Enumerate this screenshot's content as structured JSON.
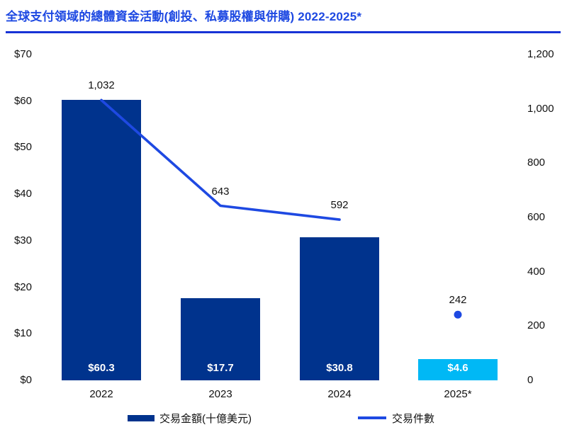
{
  "title": "全球支付領域的總體資金活動(創投、私募股權與併購) 2022-2025*",
  "colors": {
    "title": "#1E49E2",
    "divider": "#1733D6",
    "bar": "#00338D",
    "bar_highlight": "#00B8F5",
    "line": "#1E49E2",
    "text": "#111111",
    "bar_label": "#FFFFFF",
    "background": "#FFFFFF"
  },
  "chart_data": {
    "type": "combo_bar_line",
    "title": "全球支付領域的總體資金活動(創投、私募股權與併購) 2022-2025*",
    "categories": [
      "2022",
      "2023",
      "2024",
      "2025*"
    ],
    "series": [
      {
        "name": "交易金額(十億美元)",
        "type": "bar",
        "axis": "left",
        "values": [
          60.3,
          17.7,
          30.8,
          4.6
        ],
        "labels": [
          "$60.3",
          "$17.7",
          "$30.8",
          "$4.6"
        ],
        "point_colors": [
          "#00338D",
          "#00338D",
          "#00338D",
          "#00B8F5"
        ]
      },
      {
        "name": "交易件數",
        "type": "line",
        "axis": "right",
        "values": [
          1032,
          643,
          592,
          242
        ],
        "labels": [
          "1,032",
          "643",
          "592",
          "242"
        ],
        "connected": [
          true,
          true,
          true,
          false
        ]
      }
    ],
    "left_axis": {
      "min": 0,
      "max": 70,
      "tick_step": 10,
      "tick_labels": [
        "$0",
        "$10",
        "$20",
        "$30",
        "$40",
        "$50",
        "$60",
        "$70"
      ]
    },
    "right_axis": {
      "min": 0,
      "max": 1200,
      "tick_step": 200,
      "tick_labels": [
        "0",
        "200",
        "400",
        "600",
        "800",
        "1,000",
        "1,200"
      ]
    },
    "grid": false,
    "legend_position": "bottom"
  },
  "legend": {
    "items": [
      {
        "label": "交易金額(十億美元)",
        "swatch": "bar"
      },
      {
        "label": "交易件數",
        "swatch": "line"
      }
    ]
  }
}
